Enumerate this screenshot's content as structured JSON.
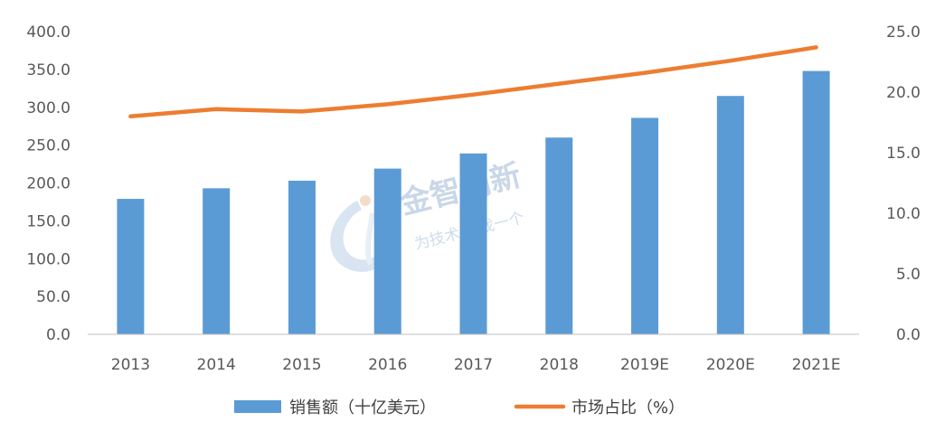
{
  "chart_data": {
    "type": "bar",
    "categories": [
      "2013",
      "2014",
      "2015",
      "2016",
      "2017",
      "2018",
      "2019E",
      "2020E",
      "2021E"
    ],
    "series": [
      {
        "name": "销售额（十亿美元）",
        "type": "bar",
        "axis": "left",
        "color": "#5B9BD5",
        "values": [
          179,
          193,
          203,
          219,
          239,
          260,
          286,
          315,
          348
        ]
      },
      {
        "name": "市场占比（%）",
        "type": "line",
        "axis": "right",
        "color": "#ED7D31",
        "values": [
          18.0,
          18.6,
          18.4,
          19.0,
          19.8,
          20.7,
          21.6,
          22.6,
          23.7
        ]
      }
    ],
    "y_left": {
      "range": [
        0,
        400
      ],
      "ticks": [
        "0.0",
        "50.0",
        "100.0",
        "150.0",
        "200.0",
        "250.0",
        "300.0",
        "350.0",
        "400.0"
      ]
    },
    "y_right": {
      "range": [
        0,
        25
      ],
      "ticks": [
        "0.0",
        "5.0",
        "10.0",
        "15.0",
        "20.0",
        "25.0"
      ]
    },
    "grid": false,
    "legend": "bottom"
  },
  "watermark": {
    "title": "金智创新",
    "subtitle": "为技术 寻找一个"
  }
}
